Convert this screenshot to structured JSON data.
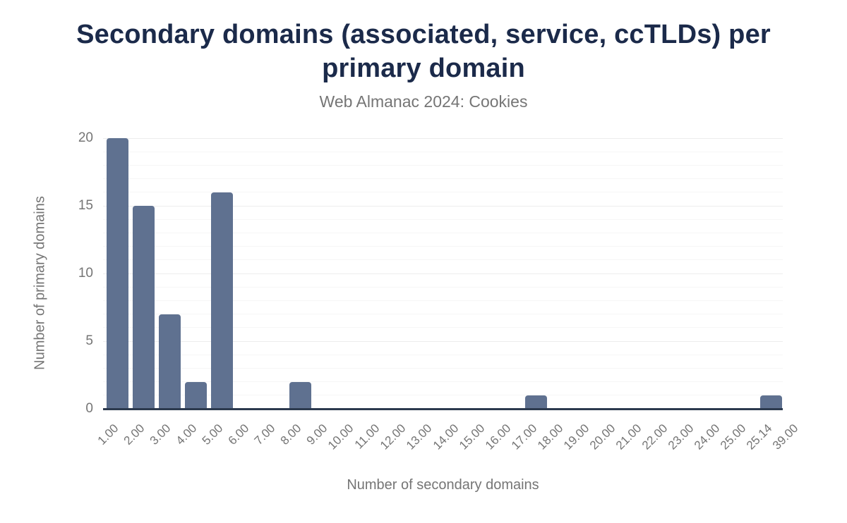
{
  "page": {
    "background": "#ffffff"
  },
  "chart_data": {
    "type": "bar",
    "variant": "histogram",
    "title": "Secondary domains (associated, service, ccTLDs) per primary domain",
    "subtitle": "Web Almanac 2024: Cookies",
    "xlabel": "Number of secondary domains",
    "ylabel": "Number of primary domains",
    "x_boundary_labels": [
      "1.00",
      "2.00",
      "3.00",
      "4.00",
      "5.00",
      "6.00",
      "7.00",
      "8.00",
      "9.00",
      "10.00",
      "11.00",
      "12.00",
      "13.00",
      "14.00",
      "15.00",
      "16.00",
      "17.00",
      "18.00",
      "19.00",
      "20.00",
      "21.00",
      "22.00",
      "23.00",
      "24.00",
      "25.00",
      "25.14",
      "39.00"
    ],
    "bucket_values": [
      20,
      15,
      7,
      2,
      16,
      0,
      0,
      2,
      0,
      0,
      0,
      0,
      0,
      0,
      0,
      0,
      1,
      0,
      0,
      0,
      0,
      0,
      0,
      0,
      0,
      1
    ],
    "nonzero_buckets": [
      {
        "bucket": "1.00-2.00",
        "count": 20
      },
      {
        "bucket": "2.00-3.00",
        "count": 15
      },
      {
        "bucket": "3.00-4.00",
        "count": 7
      },
      {
        "bucket": "4.00-5.00",
        "count": 2
      },
      {
        "bucket": "5.00-6.00",
        "count": 16
      },
      {
        "bucket": "8.00-9.00",
        "count": 2
      },
      {
        "bucket": "17.00-18.00",
        "count": 1
      },
      {
        "bucket": "25.14-39.00",
        "count": 1
      }
    ],
    "yticks": [
      0,
      5,
      10,
      15,
      20
    ],
    "ylim": [
      0,
      20
    ],
    "grid": "horizontal minor lines every 1 unit, major lines every 5 units",
    "legend": "none",
    "colors": {
      "bar": "#5f7190",
      "title_text": "#1b2a4a",
      "muted_text": "#757575",
      "axis_line": "#2c3a4e",
      "grid_major": "#ececec",
      "grid_minor": "#f6f6f6"
    }
  }
}
